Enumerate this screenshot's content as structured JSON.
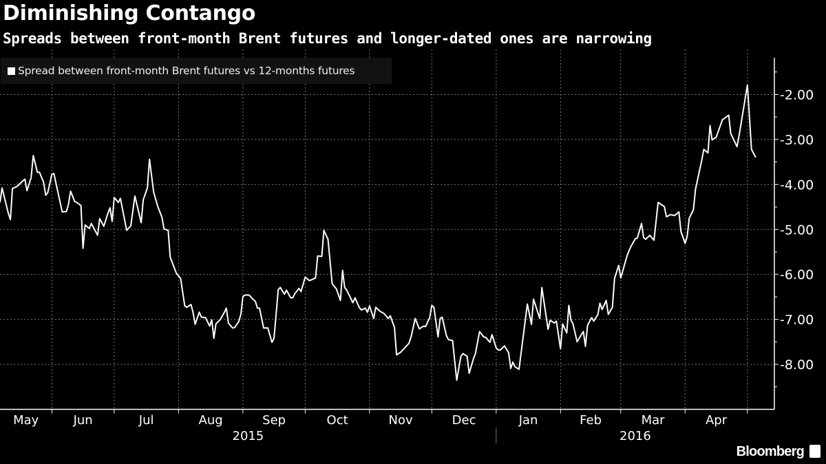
{
  "chart_data": {
    "type": "line",
    "title": "Diminishing Contango",
    "subtitle": "Spreads between front-month Brent futures and longer-dated ones are narrowing",
    "legend": {
      "placement": "top-left",
      "entries": [
        "Spread between front-month Brent futures vs 12-months futures"
      ]
    },
    "xlim": [
      "2015-05-07",
      "2016-05-14"
    ],
    "ylim": [
      -9,
      -1
    ],
    "y_ticks": [
      -2,
      -3,
      -4,
      -5,
      -6,
      -7,
      -8
    ],
    "y_tick_labels": [
      "-2.00",
      "-3.00",
      "-4.00",
      "-5.00",
      "-6.00",
      "-7.00",
      "-8.00"
    ],
    "x_tick_labels": [
      "May",
      "Jun",
      "Jul",
      "Aug",
      "Sep",
      "Oct",
      "Nov",
      "Dec",
      "Jan",
      "Feb",
      "Mar",
      "Apr"
    ],
    "year_labels": [
      "2015",
      "2016"
    ],
    "grid": true,
    "colors": {
      "background": "#000000",
      "line": "#ffffff",
      "grid": "#7a7a7a"
    },
    "series": [
      {
        "name": "Spread between front-month Brent futures vs 12-months futures",
        "x": [
          "2015-05-07",
          "2015-05-08",
          "2015-05-11",
          "2015-05-12",
          "2015-05-13",
          "2015-05-15",
          "2015-05-19",
          "2015-05-20",
          "2015-05-22",
          "2015-05-23",
          "2015-05-25",
          "2015-05-26",
          "2015-05-28",
          "2015-05-29",
          "2015-05-30",
          "2015-06-01",
          "2015-06-02",
          "2015-06-03",
          "2015-06-05",
          "2015-06-06",
          "2015-06-08",
          "2015-06-09",
          "2015-06-10",
          "2015-06-12",
          "2015-06-13",
          "2015-06-15",
          "2015-06-16",
          "2015-06-17",
          "2015-06-19",
          "2015-06-20",
          "2015-06-23",
          "2015-06-24",
          "2015-06-26",
          "2015-06-28",
          "2015-06-29",
          "2015-06-30",
          "2015-07-01",
          "2015-07-03",
          "2015-07-04",
          "2015-07-07",
          "2015-07-09",
          "2015-07-11",
          "2015-07-14",
          "2015-07-15",
          "2015-07-17",
          "2015-07-18",
          "2015-07-20",
          "2015-07-22",
          "2015-07-24",
          "2015-07-25",
          "2015-07-27",
          "2015-07-28",
          "2015-07-31",
          "2015-08-02",
          "2015-08-04",
          "2015-08-05",
          "2015-08-07",
          "2015-08-08",
          "2015-08-09",
          "2015-08-11",
          "2015-08-12",
          "2015-08-14",
          "2015-08-16",
          "2015-08-17",
          "2015-08-18",
          "2015-08-19",
          "2015-08-21",
          "2015-08-23",
          "2015-08-24",
          "2015-08-25",
          "2015-08-27",
          "2015-08-28",
          "2015-08-30",
          "2015-08-31",
          "2015-09-01",
          "2015-09-02",
          "2015-09-04",
          "2015-09-06",
          "2015-09-07",
          "2015-09-08",
          "2015-09-09",
          "2015-09-11",
          "2015-09-13",
          "2015-09-15",
          "2015-09-16",
          "2015-09-18",
          "2015-09-19",
          "2015-09-21",
          "2015-09-22",
          "2015-09-24",
          "2015-09-25",
          "2015-09-26",
          "2015-09-28",
          "2015-09-29",
          "2015-10-01",
          "2015-10-03",
          "2015-10-06",
          "2015-10-07",
          "2015-10-09",
          "2015-10-10",
          "2015-10-12",
          "2015-10-14",
          "2015-10-16",
          "2015-10-18",
          "2015-10-19",
          "2015-10-20",
          "2015-10-21",
          "2015-10-24",
          "2015-10-25",
          "2015-10-27",
          "2015-10-28",
          "2015-10-30",
          "2015-10-31",
          "2015-11-01",
          "2015-11-03",
          "2015-11-04",
          "2015-11-06",
          "2015-11-08",
          "2015-11-10",
          "2015-11-11",
          "2015-11-13",
          "2015-11-14",
          "2015-11-16",
          "2015-11-20",
          "2015-11-21",
          "2015-11-23",
          "2015-11-25",
          "2015-11-27",
          "2015-11-28",
          "2015-11-30",
          "2015-12-01",
          "2015-12-02",
          "2015-12-04",
          "2015-12-05",
          "2015-12-06",
          "2015-12-08",
          "2015-12-09",
          "2015-12-11",
          "2015-12-13",
          "2015-12-15",
          "2015-12-16",
          "2015-12-18",
          "2015-12-19",
          "2015-12-21",
          "2015-12-22",
          "2015-12-24",
          "2015-12-26",
          "2015-12-27",
          "2015-12-29",
          "2015-12-30",
          "2016-01-01",
          "2016-01-02",
          "2016-01-03",
          "2016-01-05",
          "2016-01-07",
          "2016-01-08",
          "2016-01-09",
          "2016-01-10",
          "2016-01-12",
          "2016-01-16",
          "2016-01-18",
          "2016-01-19",
          "2016-01-22",
          "2016-01-23",
          "2016-01-26",
          "2016-01-27",
          "2016-01-29",
          "2016-01-30",
          "2016-02-01",
          "2016-02-02",
          "2016-02-04",
          "2016-02-05",
          "2016-02-06",
          "2016-02-07",
          "2016-02-09",
          "2016-02-11",
          "2016-02-12",
          "2016-02-13",
          "2016-02-14",
          "2016-02-16",
          "2016-02-17",
          "2016-02-19",
          "2016-02-20",
          "2016-02-21",
          "2016-02-23",
          "2016-02-24",
          "2016-02-26",
          "2016-02-27",
          "2016-02-29",
          "2016-03-01",
          "2016-03-04",
          "2016-03-05",
          "2016-03-06",
          "2016-03-08",
          "2016-03-09",
          "2016-03-11",
          "2016-03-12",
          "2016-03-13",
          "2016-03-15",
          "2016-03-17",
          "2016-03-19",
          "2016-03-22",
          "2016-03-23",
          "2016-03-25",
          "2016-03-27",
          "2016-03-29",
          "2016-03-30",
          "2016-04-01",
          "2016-04-02",
          "2016-04-03",
          "2016-04-05",
          "2016-04-06",
          "2016-04-09",
          "2016-04-10",
          "2016-04-12",
          "2016-04-13",
          "2016-04-14",
          "2016-04-16",
          "2016-04-19",
          "2016-04-20",
          "2016-04-22",
          "2016-04-23",
          "2016-04-26",
          "2016-04-27",
          "2016-05-01",
          "2016-05-03",
          "2016-05-05"
        ],
        "values": [
          -4.4,
          -4.08,
          -4.64,
          -4.78,
          -4.09,
          -4.05,
          -3.88,
          -4.14,
          -3.85,
          -3.36,
          -3.73,
          -3.73,
          -3.95,
          -4.24,
          -4.18,
          -3.77,
          -3.76,
          -3.98,
          -4.41,
          -4.61,
          -4.6,
          -4.44,
          -4.15,
          -4.38,
          -4.4,
          -4.47,
          -5.42,
          -4.9,
          -4.98,
          -4.87,
          -5.13,
          -4.76,
          -4.93,
          -4.64,
          -4.52,
          -4.82,
          -4.29,
          -4.4,
          -4.31,
          -5.02,
          -4.92,
          -4.26,
          -4.85,
          -4.34,
          -4.08,
          -3.44,
          -4.17,
          -4.49,
          -4.73,
          -4.99,
          -5.02,
          -5.62,
          -5.98,
          -6.09,
          -6.7,
          -6.73,
          -6.67,
          -6.85,
          -7.11,
          -6.84,
          -6.95,
          -6.96,
          -7.15,
          -7.01,
          -7.42,
          -7.1,
          -7.01,
          -6.85,
          -6.75,
          -7.08,
          -7.19,
          -7.18,
          -7.05,
          -6.89,
          -6.49,
          -6.46,
          -6.46,
          -6.56,
          -6.6,
          -6.75,
          -6.75,
          -7.19,
          -7.19,
          -7.51,
          -7.42,
          -6.34,
          -6.29,
          -6.44,
          -6.35,
          -6.52,
          -6.52,
          -6.43,
          -6.31,
          -6.38,
          -6.06,
          -6.14,
          -6.08,
          -5.59,
          -5.6,
          -5.02,
          -5.22,
          -6.21,
          -6.32,
          -6.58,
          -5.91,
          -6.29,
          -6.35,
          -6.63,
          -6.52,
          -6.73,
          -6.79,
          -6.75,
          -6.84,
          -6.7,
          -6.98,
          -6.73,
          -6.82,
          -6.87,
          -6.98,
          -6.92,
          -7.18,
          -7.79,
          -7.73,
          -7.53,
          -7.39,
          -6.98,
          -7.21,
          -7.15,
          -7.16,
          -6.96,
          -6.69,
          -6.73,
          -7.39,
          -6.98,
          -6.95,
          -7.36,
          -7.45,
          -7.47,
          -8.35,
          -7.82,
          -7.76,
          -7.82,
          -8.2,
          -7.88,
          -7.76,
          -7.27,
          -7.39,
          -7.4,
          -7.51,
          -7.34,
          -7.63,
          -7.68,
          -7.68,
          -7.59,
          -7.74,
          -8.09,
          -7.95,
          -8.05,
          -8.11,
          -6.66,
          -7.11,
          -6.55,
          -6.98,
          -6.29,
          -7.22,
          -7.02,
          -7.08,
          -7.04,
          -7.65,
          -7.1,
          -7.3,
          -6.69,
          -7.01,
          -7.1,
          -7.5,
          -7.34,
          -7.27,
          -7.6,
          -7.13,
          -6.96,
          -7.04,
          -6.89,
          -6.64,
          -6.78,
          -6.58,
          -6.89,
          -6.73,
          -6.09,
          -5.8,
          -6.08,
          -5.59,
          -5.47,
          -5.37,
          -5.21,
          -5.19,
          -4.87,
          -5.18,
          -5.22,
          -5.13,
          -5.24,
          -4.4,
          -4.49,
          -4.72,
          -4.67,
          -4.69,
          -4.61,
          -5.05,
          -5.31,
          -5.16,
          -4.75,
          -4.56,
          -4.11,
          -3.47,
          -3.22,
          -3.3,
          -2.69,
          -3.01,
          -2.95,
          -2.56,
          -2.53,
          -2.46,
          -2.87,
          -3.16,
          -2.92,
          -1.79,
          -3.22,
          -3.4
        ]
      }
    ]
  },
  "branding": {
    "logo_text": "Bloomberg"
  }
}
